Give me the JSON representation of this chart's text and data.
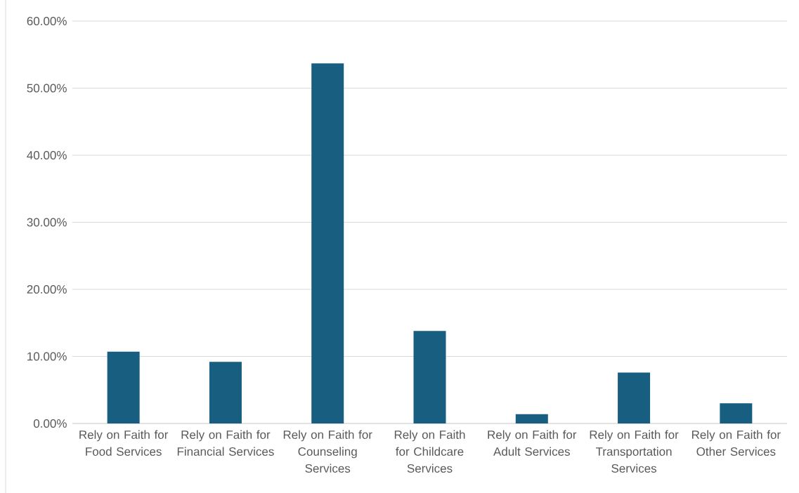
{
  "chart_data": {
    "type": "bar",
    "categories": [
      "Rely on Faith for Food Services",
      "Rely on Faith for Financial Services",
      "Rely on Faith for Counseling Services",
      "Rely on Faith for Childcare Services",
      "Rely on Faith for Adult Services",
      "Rely on Faith for Transportation Services",
      "Rely on Faith for Other Services"
    ],
    "values": [
      10.7,
      9.2,
      53.7,
      13.8,
      1.4,
      7.6,
      3.0
    ],
    "color": "#175e81",
    "ylim": [
      0,
      60
    ],
    "yticks": [
      {
        "value": 0,
        "label": "0.00%"
      },
      {
        "value": 10,
        "label": "10.00%"
      },
      {
        "value": 20,
        "label": "20.00%"
      },
      {
        "value": 30,
        "label": "30.00%"
      },
      {
        "value": 40,
        "label": "40.00%"
      },
      {
        "value": 50,
        "label": "50.00%"
      },
      {
        "value": 60,
        "label": "60.00%"
      }
    ],
    "grid": "y"
  }
}
